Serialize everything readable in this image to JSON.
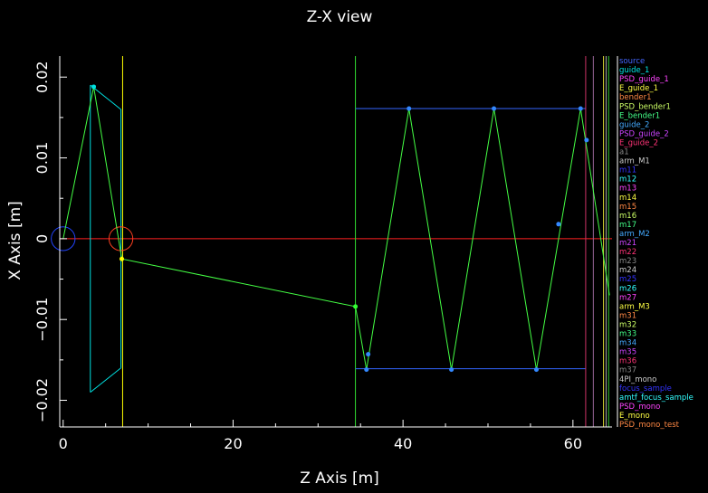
{
  "chart_data": {
    "type": "line",
    "title": "Z-X view",
    "xlabel": "Z Axis [m]",
    "ylabel": "X Axis [m]",
    "xlim": [
      -0.4,
      64.6
    ],
    "ylim": [
      -0.0233,
      0.0226
    ],
    "xticks": [
      0,
      20,
      40,
      60
    ],
    "xtick_labels": [
      "0",
      "20",
      "40",
      "60"
    ],
    "yticks": [
      -0.02,
      -0.01,
      0,
      0.01,
      0.02
    ],
    "ytick_labels": [
      "−0.02",
      "−0.01",
      "0",
      "0.01",
      "0.02"
    ],
    "grid": false,
    "legend_placement": "right",
    "background": "#000000",
    "axis_color": "#ffffff",
    "beam_axis": {
      "y": 0,
      "color": "#ff2020"
    },
    "components": [
      {
        "type": "segments",
        "color": "#00e0e0",
        "lines": [
          [
            [
              3.2,
              0.019
            ],
            [
              3.2,
              -0.019
            ]
          ],
          [
            [
              3.2,
              0.019
            ],
            [
              6.8,
              0.016
            ]
          ],
          [
            [
              3.2,
              -0.019
            ],
            [
              6.8,
              -0.016
            ]
          ],
          [
            [
              6.8,
              0.016
            ],
            [
              6.8,
              -0.016
            ]
          ]
        ]
      },
      {
        "type": "segments",
        "color": "#ffff00",
        "lines": [
          [
            [
              7.0,
              0.0226
            ],
            [
              7.0,
              -0.0233
            ]
          ]
        ]
      },
      {
        "type": "segments",
        "color": "#33dd33",
        "lines": [
          [
            [
              34.4,
              0.0226
            ],
            [
              34.4,
              -0.0233
            ]
          ]
        ]
      },
      {
        "type": "segments",
        "color": "#3366ff",
        "lines": [
          [
            [
              34.4,
              0.0161
            ],
            [
              61.5,
              0.0161
            ]
          ],
          [
            [
              34.4,
              -0.0161
            ],
            [
              61.5,
              -0.0161
            ]
          ]
        ]
      },
      {
        "type": "segments",
        "color": "#cc3366",
        "lines": [
          [
            [
              61.5,
              0.0226
            ],
            [
              61.5,
              -0.0233
            ]
          ]
        ]
      },
      {
        "type": "segments",
        "color": "#996699",
        "lines": [
          [
            [
              62.4,
              0.0226
            ],
            [
              62.4,
              -0.0233
            ]
          ]
        ]
      },
      {
        "type": "segments",
        "color": "#dddd33",
        "lines": [
          [
            [
              63.6,
              0.0226
            ],
            [
              63.6,
              -0.0233
            ]
          ]
        ]
      },
      {
        "type": "segments",
        "color": "#aaaaaa",
        "lines": [
          [
            [
              63.9,
              0.0226
            ],
            [
              63.9,
              -0.0233
            ]
          ]
        ]
      },
      {
        "type": "segments",
        "color": "#33cc33",
        "lines": [
          [
            [
              64.2,
              0.0226
            ],
            [
              64.2,
              -0.0233
            ]
          ]
        ]
      },
      {
        "type": "circle",
        "color": "#2244ff",
        "center": [
          0,
          0
        ],
        "radius": 1.4
      },
      {
        "type": "circle",
        "color": "#ff4020",
        "center": [
          6.8,
          0
        ],
        "radius": 1.4
      }
    ],
    "series": [
      {
        "color": "#44ff44",
        "x": [
          0,
          3.6,
          6.9,
          34.4,
          35.7,
          40.7,
          45.7,
          50.7,
          55.7,
          60.9,
          64.3
        ],
        "y": [
          0,
          0.0188,
          -0.0025,
          -0.0084,
          -0.0162,
          0.0161,
          -0.0162,
          0.0161,
          -0.0162,
          0.0161,
          -0.007
        ]
      }
    ],
    "points": [
      {
        "x": 3.6,
        "y": 0.0188,
        "color": "#00e0e0"
      },
      {
        "x": 6.9,
        "y": -0.0025,
        "color": "#ffff00"
      },
      {
        "x": 34.4,
        "y": -0.0084,
        "color": "#33ff33"
      },
      {
        "x": 35.7,
        "y": -0.0162,
        "color": "#3388ff"
      },
      {
        "x": 35.9,
        "y": -0.0143,
        "color": "#3388ff"
      },
      {
        "x": 40.7,
        "y": 0.0161,
        "color": "#3388ff"
      },
      {
        "x": 45.7,
        "y": -0.0162,
        "color": "#3388ff"
      },
      {
        "x": 50.7,
        "y": 0.0161,
        "color": "#3388ff"
      },
      {
        "x": 55.7,
        "y": -0.0162,
        "color": "#3388ff"
      },
      {
        "x": 58.3,
        "y": 0.0018,
        "color": "#3388ff"
      },
      {
        "x": 60.9,
        "y": 0.0161,
        "color": "#3388ff"
      },
      {
        "x": 61.6,
        "y": 0.0122,
        "color": "#3388ff"
      }
    ],
    "legend": [
      {
        "label": "source",
        "color": "#4466ff"
      },
      {
        "label": "guide_1",
        "color": "#00e5e5"
      },
      {
        "label": "PSD_guide_1",
        "color": "#ff44ff"
      },
      {
        "label": "E_guide_1",
        "color": "#ffff44"
      },
      {
        "label": "bender1",
        "color": "#ff8844"
      },
      {
        "label": "PSD_bender1",
        "color": "#ccff66"
      },
      {
        "label": "E_bender1",
        "color": "#44ff88"
      },
      {
        "label": "guide_2",
        "color": "#44aaff"
      },
      {
        "label": "PSD_guide_2",
        "color": "#cc44ff"
      },
      {
        "label": "E_guide_2",
        "color": "#ff3377"
      },
      {
        "label": "a1",
        "color": "#888888"
      },
      {
        "label": "arm_M1",
        "color": "#cccccc"
      },
      {
        "label": "m11",
        "color": "#3333ff"
      },
      {
        "label": "m12",
        "color": "#33ffff"
      },
      {
        "label": "m13",
        "color": "#ff44ff"
      },
      {
        "label": "m14",
        "color": "#ffff44"
      },
      {
        "label": "m15",
        "color": "#ff8844"
      },
      {
        "label": "m16",
        "color": "#ccff66"
      },
      {
        "label": "m17",
        "color": "#44ff88"
      },
      {
        "label": "arm_M2",
        "color": "#44aaff"
      },
      {
        "label": "m21",
        "color": "#cc44ff"
      },
      {
        "label": "m22",
        "color": "#ff3377"
      },
      {
        "label": "m23",
        "color": "#888888"
      },
      {
        "label": "m24",
        "color": "#cccccc"
      },
      {
        "label": "m25",
        "color": "#3333ff"
      },
      {
        "label": "m26",
        "color": "#33ffff"
      },
      {
        "label": "m27",
        "color": "#ff44ff"
      },
      {
        "label": "arm_M3",
        "color": "#ffff44"
      },
      {
        "label": "m31",
        "color": "#ff8844"
      },
      {
        "label": "m32",
        "color": "#ccff66"
      },
      {
        "label": "m33",
        "color": "#44ff88"
      },
      {
        "label": "m34",
        "color": "#44aaff"
      },
      {
        "label": "m35",
        "color": "#cc44ff"
      },
      {
        "label": "m36",
        "color": "#ff3377"
      },
      {
        "label": "m37",
        "color": "#888888"
      },
      {
        "label": "4PI_mono",
        "color": "#cccccc"
      },
      {
        "label": "focus_sample",
        "color": "#3333ff"
      },
      {
        "label": "amtf_focus_sample",
        "color": "#33ffff"
      },
      {
        "label": "PSD_mono",
        "color": "#ff44ff"
      },
      {
        "label": "E_mono",
        "color": "#ffff44"
      },
      {
        "label": "PSD_mono_test",
        "color": "#ff8844"
      }
    ]
  }
}
